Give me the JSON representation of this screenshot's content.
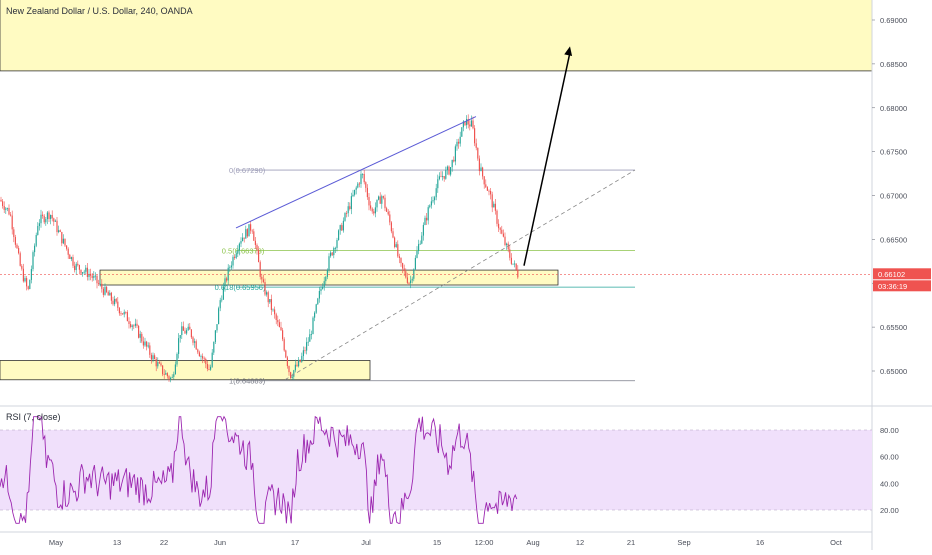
{
  "header": {
    "symbol_title": "New Zealand Dollar / U.S. Dollar, 240, OANDA"
  },
  "rsi_panel": {
    "title": "RSI (7, close)",
    "ticks": [
      {
        "label": "80.00",
        "value": 80
      },
      {
        "label": "60.00",
        "value": 60
      },
      {
        "label": "40.00",
        "value": 40
      },
      {
        "label": "20.00",
        "value": 20
      }
    ],
    "upper_band": 80,
    "lower_band": 20,
    "ylim": [
      5,
      95
    ]
  },
  "chart_data": {
    "type": "candlestick",
    "title": "New Zealand Dollar / U.S. Dollar, 240, OANDA",
    "ylim": [
      0.6475,
      0.692
    ],
    "y_ticks": [
      "0.69000",
      "0.68500",
      "0.68000",
      "0.67500",
      "0.67000",
      "0.66500",
      "0.66000",
      "0.65500",
      "0.65000"
    ],
    "y_tick_values": [
      0.69,
      0.685,
      0.68,
      0.675,
      0.67,
      0.665,
      0.66,
      0.655,
      0.65
    ],
    "x_ticks": [
      "May",
      "13",
      "22",
      "Jun",
      "17",
      "Jul",
      "15",
      "12:00",
      "Aug",
      "12",
      "21",
      "Sep",
      "16",
      "Oct"
    ],
    "current_price": {
      "label": "0.66102",
      "value": 0.66102,
      "countdown": "03:36:19"
    },
    "price_path_anchors": [
      [
        0,
        0.6695
      ],
      [
        10,
        0.668
      ],
      [
        20,
        0.662
      ],
      [
        28,
        0.659
      ],
      [
        38,
        0.667
      ],
      [
        50,
        0.668
      ],
      [
        62,
        0.665
      ],
      [
        75,
        0.662
      ],
      [
        90,
        0.661
      ],
      [
        105,
        0.659
      ],
      [
        120,
        0.657
      ],
      [
        135,
        0.655
      ],
      [
        150,
        0.652
      ],
      [
        162,
        0.65
      ],
      [
        172,
        0.649
      ],
      [
        180,
        0.6545
      ],
      [
        190,
        0.6545
      ],
      [
        200,
        0.652
      ],
      [
        210,
        0.65
      ],
      [
        220,
        0.658
      ],
      [
        230,
        0.662
      ],
      [
        240,
        0.665
      ],
      [
        252,
        0.6665
      ],
      [
        262,
        0.66
      ],
      [
        272,
        0.657
      ],
      [
        282,
        0.654
      ],
      [
        290,
        0.6495
      ],
      [
        300,
        0.651
      ],
      [
        310,
        0.654
      ],
      [
        320,
        0.659
      ],
      [
        330,
        0.663
      ],
      [
        340,
        0.666
      ],
      [
        350,
        0.669
      ],
      [
        362,
        0.6725
      ],
      [
        372,
        0.668
      ],
      [
        382,
        0.67
      ],
      [
        392,
        0.666
      ],
      [
        400,
        0.662
      ],
      [
        410,
        0.66
      ],
      [
        420,
        0.665
      ],
      [
        430,
        0.669
      ],
      [
        440,
        0.672
      ],
      [
        450,
        0.673
      ],
      [
        458,
        0.676
      ],
      [
        465,
        0.6785
      ],
      [
        472,
        0.678
      ],
      [
        480,
        0.673
      ],
      [
        490,
        0.67
      ],
      [
        500,
        0.666
      ],
      [
        510,
        0.663
      ],
      [
        518,
        0.661
      ]
    ],
    "annotations": {
      "fib_levels": [
        {
          "label": "0(0.67290)",
          "value": 0.6729
        },
        {
          "label": "0.5(0.66373)",
          "value": 0.66373
        },
        {
          "label": "0.618(0.65956)",
          "value": 0.65956
        },
        {
          "label": "1(0.64889)",
          "value": 0.64889
        }
      ],
      "resistance_zone": {
        "top": 0.692,
        "bottom": 0.6842
      },
      "support_zone_mid": {
        "top": 0.6615,
        "bottom": 0.6598
      },
      "support_zone_low": {
        "top": 0.6512,
        "bottom": 0.649
      },
      "upper_trendline": {
        "from": [
          236,
          0.6663
        ],
        "to": [
          476,
          0.679
        ]
      },
      "dashed_trendline": {
        "from": [
          285,
          0.649
        ],
        "to": [
          635,
          0.6729
        ]
      },
      "projection_arrow": {
        "from": [
          524,
          0.662
        ],
        "to": [
          570,
          0.687
        ]
      }
    }
  },
  "colors": {
    "bull": "#26a69a",
    "bear": "#ef5350",
    "zone_fill": "#fffbc2",
    "zone_stroke": "#333333",
    "trendline": "#5b5bd6",
    "rsi_line": "#9c27b0",
    "rsi_band": "#f0e0fb",
    "price_tag": "#ef5350"
  }
}
